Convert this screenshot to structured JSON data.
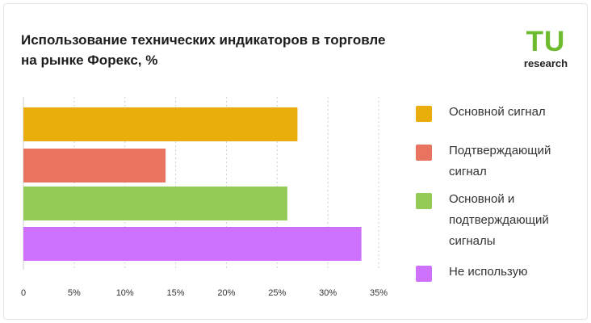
{
  "title_lines": [
    "Использование технических индикаторов в торговле",
    "на рынке Форекс, %"
  ],
  "logo": {
    "mark": "TU",
    "sub": "research",
    "color": "#6dbb2e"
  },
  "chart_data": {
    "type": "bar",
    "orientation": "horizontal",
    "title": "Использование технических индикаторов в торговле на рынке Форекс, %",
    "categories": [
      "Основной сигнал",
      "Подтверждающий сигнал",
      "Основной и подтверждающий сигналы",
      "Не использую"
    ],
    "values": [
      27,
      14,
      26,
      33.3
    ],
    "colors": [
      "#e9ad0c",
      "#e8735f",
      "#93cb56",
      "#cf71ff"
    ],
    "xlim": [
      0,
      35
    ],
    "xticks": [
      0,
      5,
      10,
      15,
      20,
      25,
      30,
      35
    ],
    "tick_labels": [
      "0",
      "5%",
      "10%",
      "15%",
      "20%",
      "25%",
      "30%",
      "35%"
    ],
    "grid": "vertical dashed",
    "legend": "right",
    "xlabel": "",
    "ylabel": ""
  },
  "legend": [
    {
      "label": "Основной сигнал",
      "color": "#e9ad0c"
    },
    {
      "label": "Подтверждающий сигнал",
      "color": "#e8735f"
    },
    {
      "label": "Основной и подтверждающий сигналы",
      "color": "#93cb56"
    },
    {
      "label": "Не использую",
      "color": "#cf71ff"
    }
  ]
}
